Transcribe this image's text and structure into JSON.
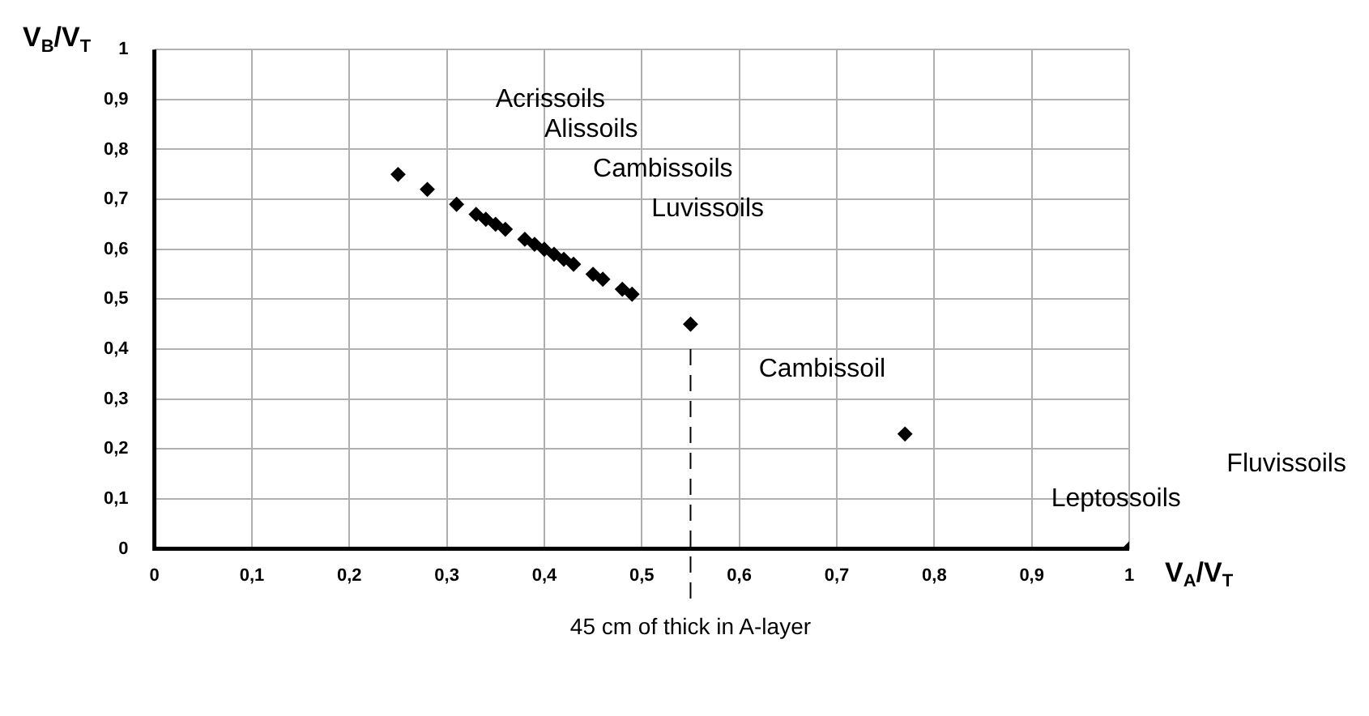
{
  "chart_data": {
    "type": "scatter",
    "xlabel": "V$_{A}$/V$_{T}$",
    "ylabel": "V$_{B}$/V$_{T}$",
    "x": [
      0.25,
      0.28,
      0.31,
      0.33,
      0.34,
      0.35,
      0.36,
      0.38,
      0.39,
      0.4,
      0.41,
      0.42,
      0.43,
      0.45,
      0.46,
      0.48,
      0.49,
      0.55,
      0.77,
      1.0
    ],
    "series": [
      {
        "color": "#000000",
        "values": [
          0.75,
          0.72,
          0.69,
          0.67,
          0.66,
          0.65,
          0.64,
          0.62,
          0.61,
          0.6,
          0.59,
          0.58,
          0.57,
          0.55,
          0.54,
          0.52,
          0.51,
          0.45,
          0.23,
          0.0
        ]
      }
    ],
    "xlim": [
      0,
      1
    ],
    "ylim": [
      0,
      1
    ],
    "xticks": [
      0,
      {
        "value": 0.1,
        "label": "0,1"
      },
      {
        "value": 0.2,
        "label": "0,2"
      },
      {
        "value": 0.3,
        "label": "0,3"
      },
      {
        "value": 0.4,
        "label": "0,4"
      },
      {
        "value": 0.5,
        "label": "0,5"
      },
      {
        "value": 0.6,
        "label": "0,6"
      },
      {
        "value": 0.7,
        "label": "0,7"
      },
      {
        "value": 0.8,
        "label": "0,8"
      },
      {
        "value": 0.9,
        "label": "0,9"
      },
      1
    ],
    "yticks": [
      0,
      {
        "value": 0.1,
        "label": "0,1"
      },
      {
        "value": 0.2,
        "label": "0,2"
      },
      {
        "value": 0.3,
        "label": "0,3"
      },
      {
        "value": 0.4,
        "label": "0,4"
      },
      {
        "value": 0.5,
        "label": "0,5"
      },
      {
        "value": 0.6,
        "label": "0,6"
      },
      {
        "value": 0.7,
        "label": "0,7"
      },
      {
        "value": 0.8,
        "label": "0,8"
      },
      {
        "value": 0.9,
        "label": "0,9"
      },
      1
    ],
    "grid": true,
    "legend": false,
    "marker": "diamond",
    "ref_lines": [
      {
        "axis": "x",
        "value": 0.55,
        "label": "45 cm of thick in A-layer",
        "color": "#000000",
        "line_style": "dashed"
      }
    ],
    "annotations": [
      "Acrissoils",
      "Alissoils",
      "Cambissoils",
      "Luvissoils",
      "Cambissoil",
      "Fluvissoils",
      "Leptossoils"
    ]
  }
}
